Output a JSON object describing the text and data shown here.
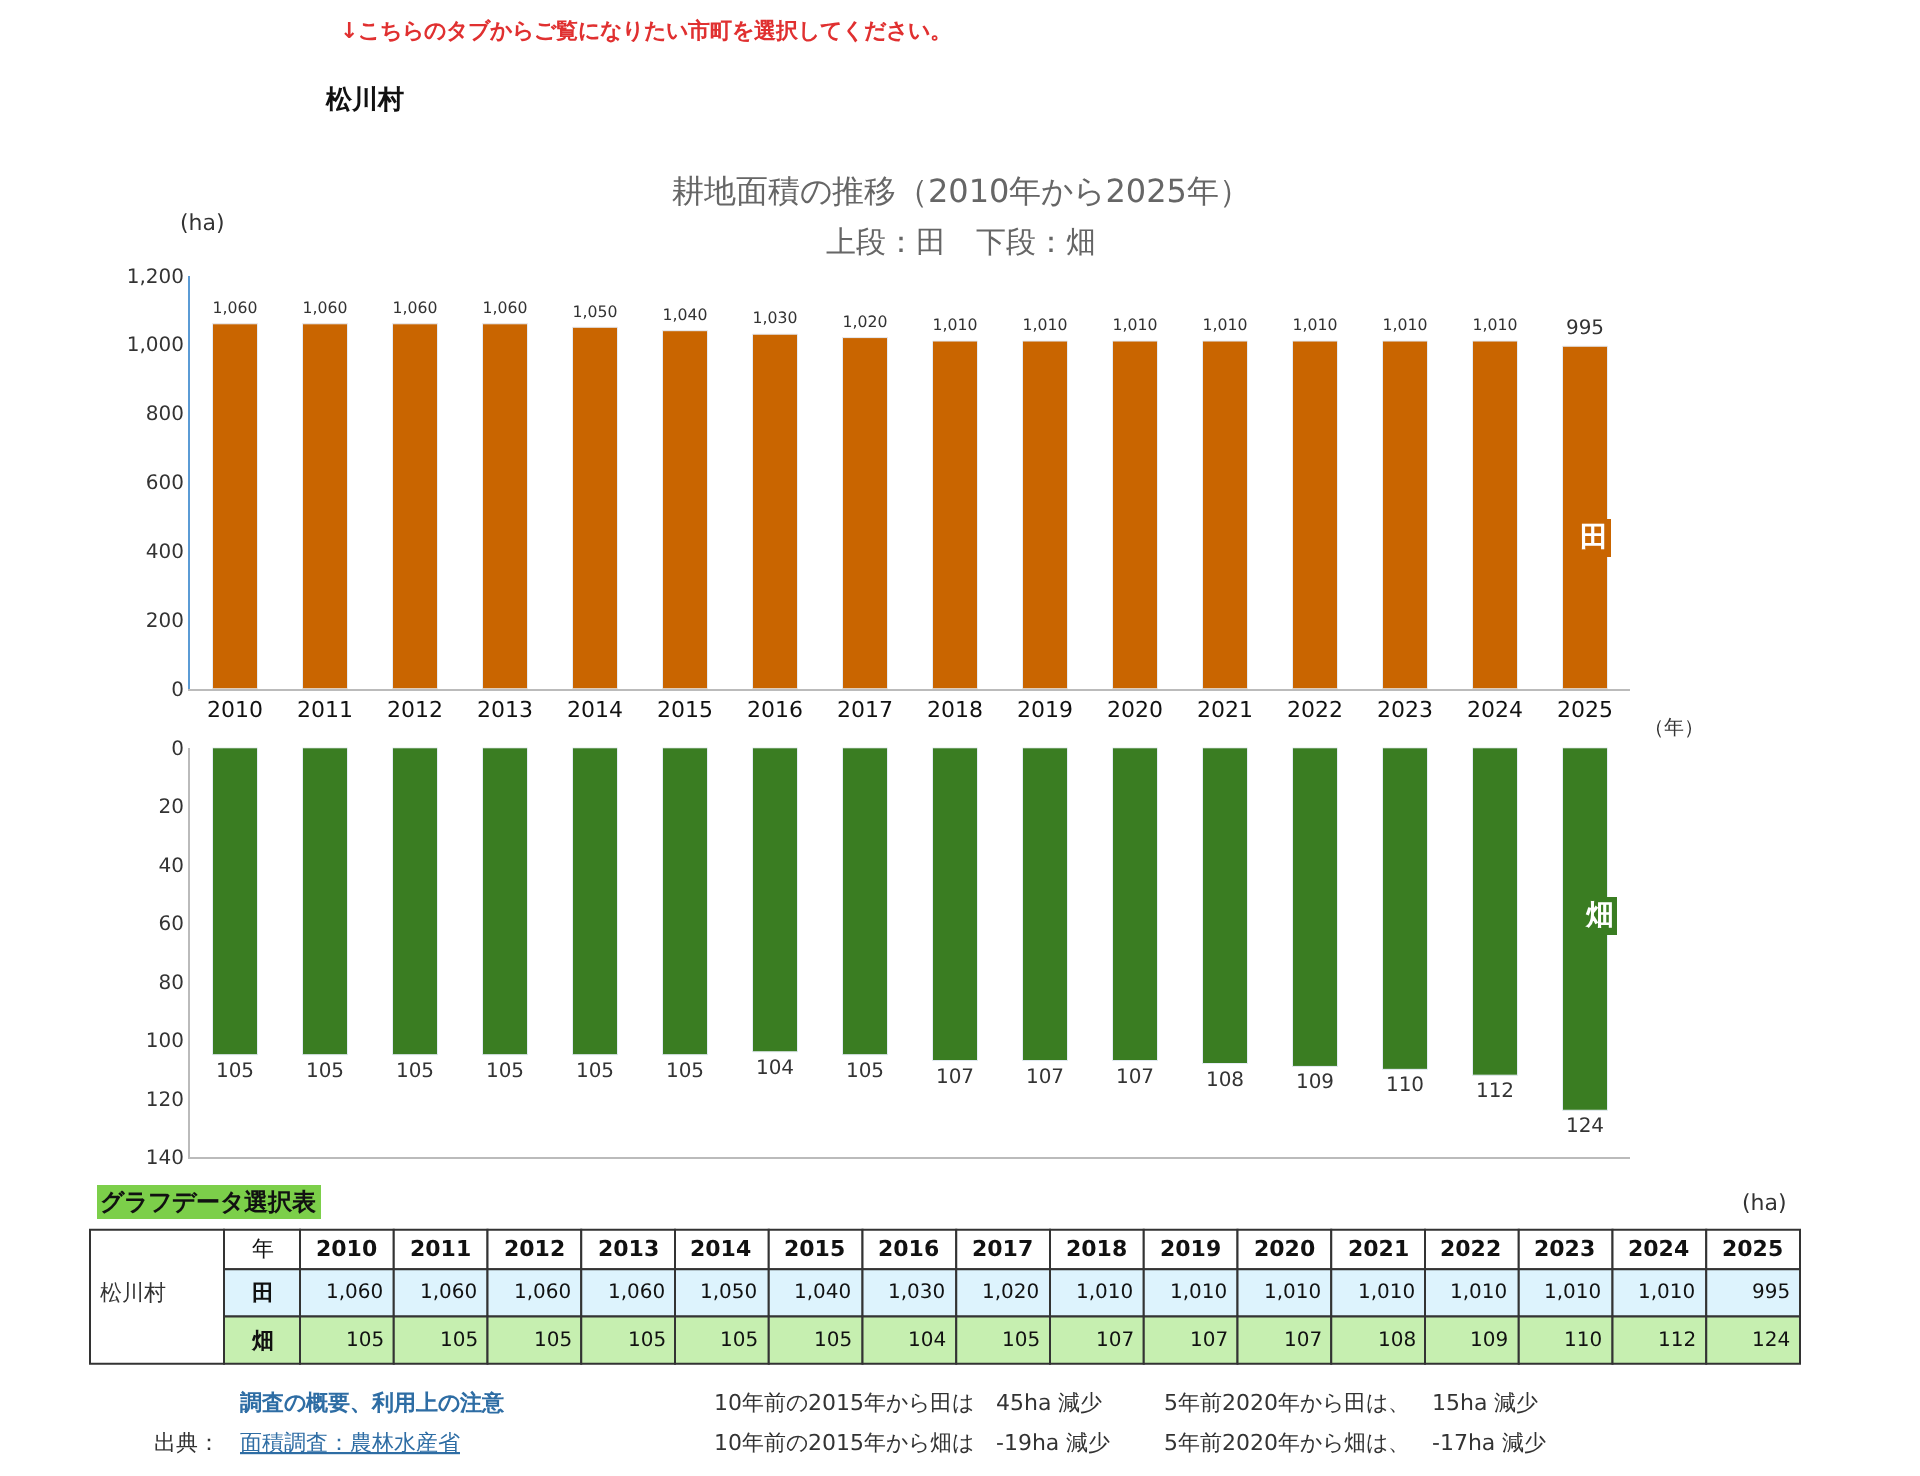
{
  "chart_data": [
    {
      "type": "bar",
      "title": "耕地面積の推移（2010年から2025年）",
      "subtitle": "上段：田　下段：畑",
      "ylabel": "(ha)",
      "xlabel": "（年）",
      "categories": [
        "2010",
        "2011",
        "2012",
        "2013",
        "2014",
        "2015",
        "2016",
        "2017",
        "2018",
        "2019",
        "2020",
        "2021",
        "2022",
        "2023",
        "2024",
        "2025"
      ],
      "values": [
        1060,
        1060,
        1060,
        1060,
        1050,
        1040,
        1030,
        1020,
        1010,
        1010,
        1010,
        1010,
        1010,
        1010,
        1010,
        995
      ],
      "value_labels": [
        "1,060",
        "1,060",
        "1,060",
        "1,060",
        "1,050",
        "1,040",
        "1,030",
        "1,020",
        "1,010",
        "1,010",
        "1,010",
        "1,010",
        "1,010",
        "1,010",
        "1,010",
        "995"
      ],
      "color": "#c96500",
      "ylim": [
        0,
        1200
      ],
      "yticks": [
        0,
        200,
        400,
        600,
        800,
        {
          "value": 1000,
          "label": "1,000"
        },
        {
          "value": 1200,
          "label": "1,200"
        }
      ],
      "annotations": [
        "↓こちらのタブからご覧になりたい市町を選択してください。",
        "松川村",
        "田"
      ]
    },
    {
      "type": "bar",
      "categories": [
        "2010",
        "2011",
        "2012",
        "2013",
        "2014",
        "2015",
        "2016",
        "2017",
        "2018",
        "2019",
        "2020",
        "2021",
        "2022",
        "2023",
        "2024",
        "2025"
      ],
      "values": [
        105,
        105,
        105,
        105,
        105,
        105,
        104,
        105,
        107,
        107,
        107,
        108,
        109,
        110,
        112,
        124
      ],
      "value_labels": [
        "105",
        "105",
        "105",
        "105",
        "105",
        "105",
        "104",
        "105",
        "107",
        "107",
        "107",
        "108",
        "109",
        "110",
        "112",
        "124"
      ],
      "color": "#3a7d22",
      "ylim": [
        140,
        0
      ],
      "yticks": [
        0,
        20,
        40,
        60,
        80,
        100,
        120,
        140
      ],
      "tick_labels": "y",
      "annotations": [
        "畑",
        "グラフデータ選択表",
        "松川村",
        "年",
        "(ha)",
        "調査の概要、利用上の注意",
        "出典：",
        "面積調査：農林水産省",
        "10年前の2015年から田は　45ha 減少",
        "10年前の2015年から畑は　-19ha 減少",
        "5年前2020年から田は、　15ha 減少",
        "5年前2020年から畑は、　-17ha 減少"
      ]
    }
  ]
}
